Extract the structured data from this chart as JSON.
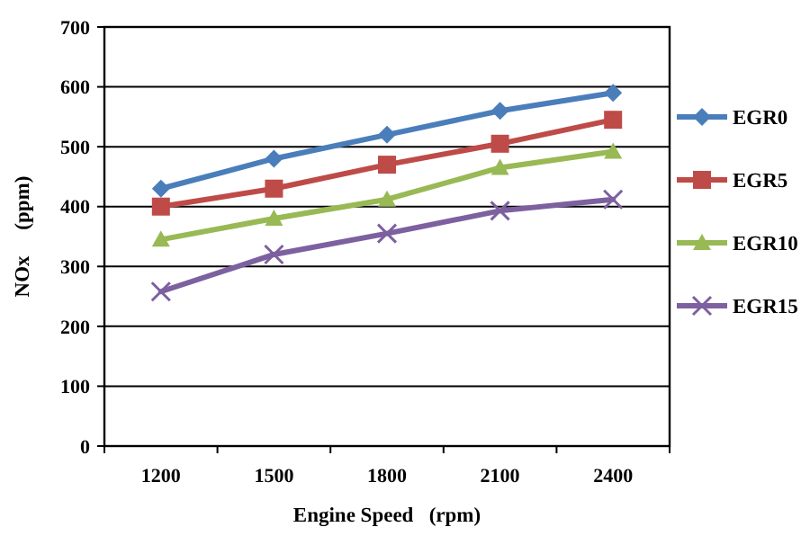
{
  "chart_data": {
    "type": "line",
    "xlabel": "Engine Speed   (rpm)",
    "ylabel": "NOx     (ppm)",
    "categories": [
      "1200",
      "1500",
      "1800",
      "2100",
      "2400"
    ],
    "ylim": [
      0,
      700
    ],
    "yticks": [
      0,
      100,
      200,
      300,
      400,
      500,
      600,
      700
    ],
    "grid": "y",
    "legend": "right",
    "line_style": "solid",
    "series": [
      {
        "name": "EGR0",
        "color": "#4a7ebb",
        "marker": "diamond",
        "values": [
          430,
          480,
          520,
          560,
          590
        ]
      },
      {
        "name": "EGR5",
        "color": "#be4b48",
        "marker": "square",
        "values": [
          400,
          430,
          470,
          505,
          545
        ]
      },
      {
        "name": "EGR10",
        "color": "#98b954",
        "marker": "triangle",
        "values": [
          345,
          380,
          412,
          465,
          492
        ]
      },
      {
        "name": "EGR15",
        "color": "#7d60a0",
        "marker": "cross",
        "values": [
          258,
          320,
          355,
          393,
          412
        ]
      }
    ]
  }
}
